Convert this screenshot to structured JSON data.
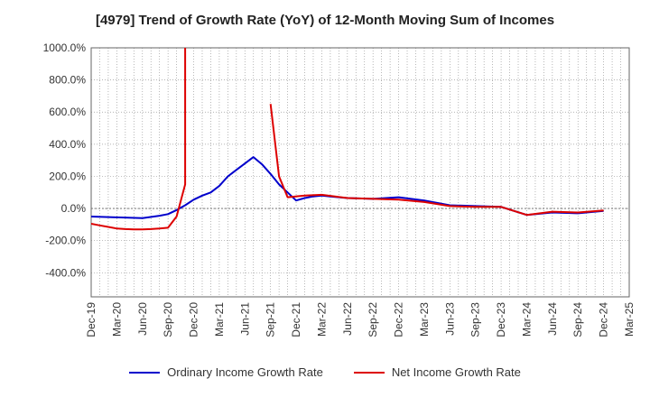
{
  "chart_data": {
    "type": "line",
    "title": "[4979]  Trend of Growth Rate (YoY) of 12-Month Moving Sum of Incomes",
    "ylim": [
      -550,
      1000
    ],
    "yticks": [
      -400,
      -200,
      0,
      200,
      400,
      600,
      800,
      1000
    ],
    "ytick_labels": [
      "-400.0%",
      "-200.0%",
      "0.0%",
      "200.0%",
      "400.0%",
      "600.0%",
      "800.0%",
      "1000.0%"
    ],
    "x_categories": [
      "Dec-19",
      "Jan-20",
      "Feb-20",
      "Mar-20",
      "Apr-20",
      "May-20",
      "Jun-20",
      "Jul-20",
      "Aug-20",
      "Sep-20",
      "Oct-20",
      "Nov-20",
      "Dec-20",
      "Jan-21",
      "Feb-21",
      "Mar-21",
      "Apr-21",
      "May-21",
      "Jun-21",
      "Jul-21",
      "Aug-21",
      "Sep-21",
      "Oct-21",
      "Nov-21",
      "Dec-21",
      "Jan-22",
      "Feb-22",
      "Mar-22",
      "Apr-22",
      "May-22",
      "Jun-22",
      "Jul-22",
      "Aug-22",
      "Sep-22",
      "Oct-22",
      "Nov-22",
      "Dec-22",
      "Jan-23",
      "Feb-23",
      "Mar-23",
      "Apr-23",
      "May-23",
      "Jun-23",
      "Jul-23",
      "Aug-23",
      "Sep-23",
      "Oct-23",
      "Nov-23",
      "Dec-23",
      "Jan-24",
      "Feb-24",
      "Mar-24",
      "Apr-24",
      "May-24",
      "Jun-24",
      "Jul-24",
      "Aug-24",
      "Sep-24",
      "Oct-24",
      "Nov-24",
      "Dec-24",
      "Jan-25",
      "Feb-25",
      "Mar-25"
    ],
    "xtick_labels": [
      "Dec-19",
      "Mar-20",
      "Jun-20",
      "Sep-20",
      "Dec-20",
      "Mar-21",
      "Jun-21",
      "Sep-21",
      "Dec-21",
      "Mar-22",
      "Jun-22",
      "Sep-22",
      "Dec-22",
      "Mar-23",
      "Jun-23",
      "Sep-23",
      "Dec-23",
      "Mar-24",
      "Jun-24",
      "Sep-24",
      "Dec-24",
      "Mar-25"
    ],
    "grid": true,
    "legend_position": "bottom",
    "series": [
      {
        "name": "Ordinary Income Growth Rate",
        "color": "#0000cc",
        "points": [
          [
            "Dec-19",
            -50
          ],
          [
            "Mar-20",
            -55
          ],
          [
            "Jun-20",
            -60
          ],
          [
            "Aug-20",
            -45
          ],
          [
            "Sep-20",
            -35
          ],
          [
            "Oct-20",
            -10
          ],
          [
            "Nov-20",
            20
          ],
          [
            "Dec-20",
            55
          ],
          [
            "Jan-21",
            80
          ],
          [
            "Feb-21",
            100
          ],
          [
            "Mar-21",
            140
          ],
          [
            "Apr-21",
            200
          ],
          [
            "May-21",
            240
          ],
          [
            "Jun-21",
            280
          ],
          [
            "Jul-21",
            320
          ],
          [
            "Aug-21",
            275
          ],
          [
            "Sep-21",
            215
          ],
          [
            "Oct-21",
            150
          ],
          [
            "Nov-21",
            100
          ],
          [
            "Dec-21",
            50
          ],
          [
            "Jan-22",
            65
          ],
          [
            "Feb-22",
            75
          ],
          [
            "Mar-22",
            80
          ],
          [
            "Apr-22",
            75
          ],
          [
            "May-22",
            70
          ],
          [
            "Jun-22",
            65
          ],
          [
            "Sep-22",
            60
          ],
          [
            "Dec-22",
            70
          ],
          [
            "Mar-23",
            50
          ],
          [
            "Jun-23",
            20
          ],
          [
            "Sep-23",
            15
          ],
          [
            "Dec-23",
            10
          ],
          [
            "Mar-24",
            -40
          ],
          [
            "Jun-24",
            -25
          ],
          [
            "Sep-24",
            -30
          ],
          [
            "Dec-24",
            -15
          ]
        ]
      },
      {
        "name": "Net Income Growth Rate",
        "color": "#dd0000",
        "points": [
          [
            "Dec-19",
            -95
          ],
          [
            "Jan-20",
            -105
          ],
          [
            "Feb-20",
            -115
          ],
          [
            "Mar-20",
            -125
          ],
          [
            "Apr-20",
            -128
          ],
          [
            "May-20",
            -130
          ],
          [
            "Jun-20",
            -130
          ],
          [
            "Jul-20",
            -128
          ],
          [
            "Aug-20",
            -125
          ],
          [
            "Sep-20",
            -120
          ],
          [
            "Oct-20",
            -50
          ],
          [
            "Nov-20",
            150
          ],
          [
            "Nov-20",
            1000
          ],
          [
            "Sep-21",
            650
          ],
          [
            "Oct-21",
            200
          ],
          [
            "Nov-21",
            70
          ],
          [
            "Jan-22",
            80
          ],
          [
            "Mar-22",
            85
          ],
          [
            "Jun-22",
            65
          ],
          [
            "Sep-22",
            60
          ],
          [
            "Dec-22",
            55
          ],
          [
            "Mar-23",
            40
          ],
          [
            "Jun-23",
            15
          ],
          [
            "Sep-23",
            10
          ],
          [
            "Dec-23",
            10
          ],
          [
            "Mar-24",
            -40
          ],
          [
            "Jun-24",
            -20
          ],
          [
            "Sep-24",
            -25
          ],
          [
            "Dec-24",
            -12
          ]
        ],
        "segments": [
          [
            0,
            12
          ],
          [
            13,
            28
          ]
        ]
      }
    ]
  }
}
